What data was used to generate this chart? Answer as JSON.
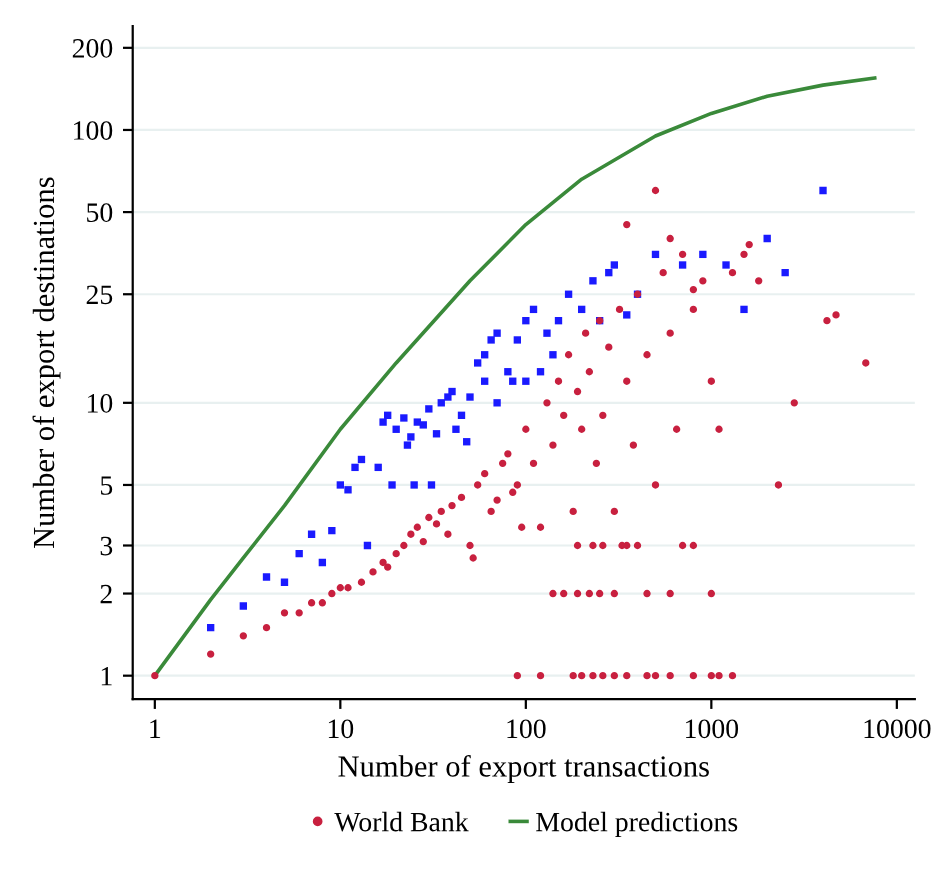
{
  "chart_data": {
    "type": "scatter",
    "xlabel": "Number of export transactions",
    "ylabel": "Number of export destinations",
    "log": "xy",
    "xlim": [
      0.76,
      12500
    ],
    "ylim": [
      0.82,
      240
    ],
    "xticks": [
      1,
      10,
      100,
      1000,
      10000
    ],
    "yticks": [
      1,
      2,
      3,
      5,
      10,
      25,
      50,
      100,
      200
    ],
    "grid": "y",
    "legend": "bottom",
    "series": [
      {
        "color": "#1a1aff",
        "marker": "square",
        "x": [
          2,
          3,
          4,
          5,
          6,
          7,
          8,
          9,
          10,
          11,
          12,
          13,
          14,
          16,
          17,
          18,
          19,
          20,
          22,
          23,
          24,
          25,
          26,
          28,
          30,
          31,
          33,
          35,
          38,
          40,
          42,
          45,
          48,
          50,
          55,
          60,
          65,
          70,
          80,
          90,
          100,
          110,
          120,
          130,
          140,
          150,
          170,
          200,
          230,
          250,
          280,
          300,
          350,
          400,
          500,
          700,
          900,
          1200,
          1500,
          2000,
          2500,
          4000,
          60,
          70,
          100,
          85
        ],
        "values": [
          1.5,
          1.8,
          2.3,
          2.2,
          2.8,
          3.3,
          2.6,
          3.4,
          5,
          4.8,
          5.8,
          6.2,
          3,
          5.8,
          8.5,
          9,
          5,
          8,
          8.8,
          7,
          7.5,
          5,
          8.5,
          8.3,
          9.5,
          5,
          7.7,
          10,
          10.5,
          11,
          8,
          9,
          7.2,
          10.5,
          14,
          15,
          17,
          18,
          13,
          17,
          20,
          22,
          13,
          18,
          15,
          20,
          25,
          22,
          28,
          20,
          30,
          32,
          21,
          25,
          35,
          32,
          35,
          32,
          22,
          40,
          30,
          60,
          12,
          10,
          12,
          12
        ]
      },
      {
        "name": "World Bank",
        "color": "#c8203f",
        "marker": "circle",
        "x": [
          1,
          2,
          3,
          4,
          5,
          6,
          7,
          8,
          9,
          10,
          11,
          13,
          15,
          17,
          18,
          20,
          22,
          24,
          26,
          28,
          30,
          33,
          35,
          38,
          40,
          45,
          50,
          52,
          55,
          60,
          65,
          70,
          75,
          80,
          85,
          90,
          95,
          100,
          110,
          120,
          130,
          140,
          150,
          160,
          170,
          180,
          190,
          200,
          210,
          220,
          240,
          250,
          260,
          280,
          300,
          320,
          350,
          380,
          400,
          450,
          500,
          550,
          600,
          650,
          700,
          800,
          900,
          1000,
          1100,
          1300,
          1600,
          1800,
          2300,
          2800,
          4200,
          4700,
          6800,
          1500,
          500,
          600,
          800,
          350,
          90,
          120,
          180,
          200,
          230,
          260,
          300,
          350,
          450,
          500,
          600,
          800,
          1000,
          1100,
          1300,
          140,
          160,
          190,
          220,
          250,
          300,
          450,
          600,
          1000,
          190,
          230,
          260,
          330,
          350,
          400,
          700,
          800
        ],
        "values": [
          1,
          1.2,
          1.4,
          1.5,
          1.7,
          1.7,
          1.85,
          1.85,
          2,
          2.1,
          2.1,
          2.2,
          2.4,
          2.6,
          2.5,
          2.8,
          3,
          3.3,
          3.5,
          3.1,
          3.8,
          3.6,
          4,
          3.3,
          4.2,
          4.5,
          3,
          2.7,
          5,
          5.5,
          4,
          4.4,
          6,
          6.5,
          4.7,
          5,
          3.5,
          8,
          6,
          3.5,
          10,
          7,
          12,
          9,
          15,
          4,
          11,
          8,
          18,
          13,
          6,
          20,
          9,
          16,
          4,
          22,
          12,
          7,
          25,
          15,
          5,
          30,
          18,
          8,
          35,
          22,
          28,
          12,
          8,
          30,
          38,
          28,
          5,
          10,
          20,
          21,
          14,
          35,
          60,
          40,
          26,
          45,
          1,
          1,
          1,
          1,
          1,
          1,
          1,
          1,
          1,
          1,
          1,
          1,
          1,
          1,
          1,
          2,
          2,
          2,
          2,
          2,
          2,
          2,
          2,
          2,
          3,
          3,
          3,
          3,
          3,
          3,
          3,
          3
        ]
      },
      {
        "name": "Model predictions",
        "type": "line",
        "color": "#3a8a3a",
        "marker": "none",
        "line_style": "solid",
        "x": [
          1,
          2,
          3,
          5,
          10,
          20,
          50,
          100,
          200,
          500,
          1000,
          2000,
          4000,
          7600
        ],
        "values": [
          1,
          1.9,
          2.7,
          4.2,
          8,
          14,
          28,
          45,
          66,
          95,
          115,
          133,
          146,
          155
        ]
      }
    ]
  }
}
